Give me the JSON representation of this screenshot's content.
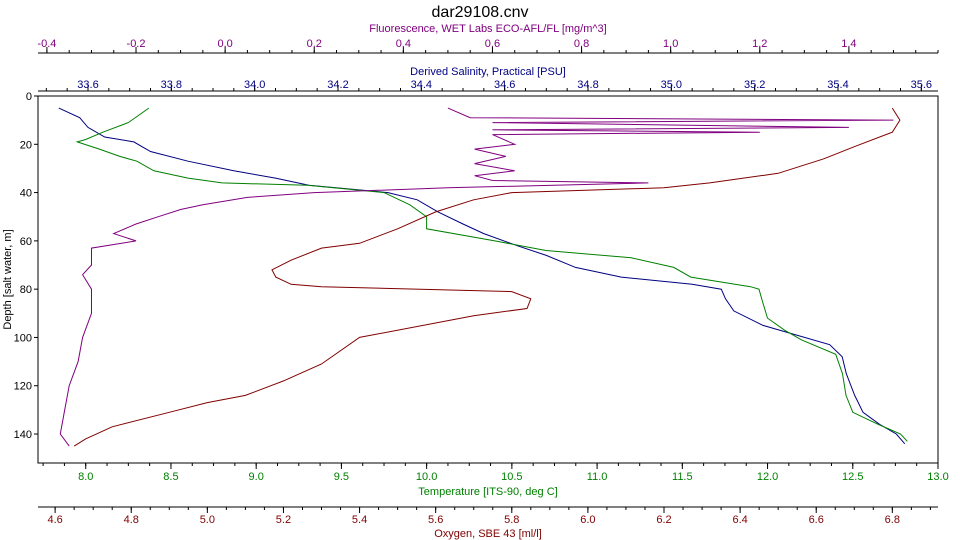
{
  "chart_data": {
    "type": "line",
    "title": "dar29108.cnv",
    "grid": false,
    "legend": "none",
    "y_axis": {
      "label": "Depth [salt water, m]",
      "range": [
        0,
        152
      ],
      "inverted": true,
      "ticks": [
        "0",
        "20",
        "40",
        "60",
        "80",
        "100",
        "120",
        "140"
      ],
      "color": "#000000"
    },
    "x_axes": [
      {
        "id": "fluorescence",
        "label": "Fluorescence, WET Labs ECO-AFL/FL [mg/m^3]",
        "range": [
          -0.42,
          1.6
        ],
        "ticks": [
          "-0.4",
          "-0.2",
          "0.0",
          "0.2",
          "0.4",
          "0.6",
          "0.8",
          "1.0",
          "1.2",
          "1.4"
        ],
        "color": "#800080"
      },
      {
        "id": "salinity",
        "label": "Derived Salinity, Practical [PSU]",
        "range": [
          33.48,
          35.64
        ],
        "ticks": [
          "33.6",
          "33.8",
          "34.0",
          "34.2",
          "34.4",
          "34.6",
          "34.8",
          "35.0",
          "35.2",
          "35.4",
          "35.6"
        ],
        "color": "#000080"
      },
      {
        "id": "temperature",
        "label": "Temperature [ITS-90, deg C]",
        "range": [
          7.72,
          13.0
        ],
        "ticks": [
          "8.0",
          "8.5",
          "9.0",
          "9.5",
          "10.0",
          "10.5",
          "11.0",
          "11.5",
          "12.0",
          "12.5",
          "13.0"
        ],
        "color": "#008000"
      },
      {
        "id": "oxygen",
        "label": "Oxygen, SBE 43 [ml/l]",
        "range": [
          4.555,
          6.92
        ],
        "ticks": [
          "4.6",
          "4.8",
          "5.0",
          "5.2",
          "5.4",
          "5.6",
          "5.8",
          "6.0",
          "6.2",
          "6.4",
          "6.6",
          "6.8"
        ],
        "color": "#800000"
      }
    ],
    "series": [
      {
        "axis": "salinity",
        "color": "#000080",
        "points": [
          [
            33.53,
            5
          ],
          [
            33.58,
            9
          ],
          [
            33.6,
            13
          ],
          [
            33.64,
            17
          ],
          [
            33.71,
            19
          ],
          [
            33.75,
            23
          ],
          [
            33.84,
            27
          ],
          [
            33.95,
            31
          ],
          [
            34.05,
            34
          ],
          [
            34.13,
            37
          ],
          [
            34.32,
            40
          ],
          [
            34.39,
            43
          ],
          [
            34.44,
            48
          ],
          [
            34.5,
            53
          ],
          [
            34.55,
            57
          ],
          [
            34.63,
            62
          ],
          [
            34.7,
            66
          ],
          [
            34.77,
            71
          ],
          [
            34.88,
            75
          ],
          [
            35.05,
            78
          ],
          [
            35.12,
            80
          ],
          [
            35.13,
            84
          ],
          [
            35.15,
            89
          ],
          [
            35.22,
            95
          ],
          [
            35.3,
            99
          ],
          [
            35.38,
            103
          ],
          [
            35.41,
            108
          ],
          [
            35.42,
            115
          ],
          [
            35.44,
            124
          ],
          [
            35.46,
            131
          ],
          [
            35.5,
            136
          ],
          [
            35.54,
            140
          ],
          [
            35.56,
            144
          ]
        ]
      },
      {
        "axis": "temperature",
        "color": "#008000",
        "points": [
          [
            8.37,
            5
          ],
          [
            8.25,
            11
          ],
          [
            8.1,
            15
          ],
          [
            8.0,
            18
          ],
          [
            7.95,
            19
          ],
          [
            8.08,
            22
          ],
          [
            8.2,
            25
          ],
          [
            8.3,
            27
          ],
          [
            8.4,
            31
          ],
          [
            8.6,
            34
          ],
          [
            8.8,
            36
          ],
          [
            9.3,
            37
          ],
          [
            9.75,
            40
          ],
          [
            9.9,
            45
          ],
          [
            10.0,
            50
          ],
          [
            10.0,
            55
          ],
          [
            10.4,
            60
          ],
          [
            10.7,
            64
          ],
          [
            11.2,
            67
          ],
          [
            11.45,
            71
          ],
          [
            11.55,
            75
          ],
          [
            11.9,
            79
          ],
          [
            11.95,
            80
          ],
          [
            11.97,
            85
          ],
          [
            12.0,
            92
          ],
          [
            12.1,
            97
          ],
          [
            12.2,
            101
          ],
          [
            12.4,
            107
          ],
          [
            12.44,
            115
          ],
          [
            12.46,
            124
          ],
          [
            12.5,
            131
          ],
          [
            12.65,
            136
          ],
          [
            12.78,
            140
          ],
          [
            12.82,
            143
          ]
        ]
      },
      {
        "axis": "oxygen",
        "color": "#800000",
        "points": [
          [
            6.8,
            5
          ],
          [
            6.82,
            10
          ],
          [
            6.8,
            15
          ],
          [
            6.7,
            21
          ],
          [
            6.62,
            26
          ],
          [
            6.5,
            32
          ],
          [
            6.32,
            36
          ],
          [
            6.2,
            38
          ],
          [
            5.8,
            40
          ],
          [
            5.7,
            43
          ],
          [
            5.6,
            48
          ],
          [
            5.5,
            55
          ],
          [
            5.4,
            61
          ],
          [
            5.3,
            63
          ],
          [
            5.22,
            68
          ],
          [
            5.17,
            72
          ],
          [
            5.18,
            75
          ],
          [
            5.22,
            78
          ],
          [
            5.3,
            79
          ],
          [
            5.8,
            81
          ],
          [
            5.85,
            84
          ],
          [
            5.84,
            88
          ],
          [
            5.7,
            91
          ],
          [
            5.4,
            100
          ],
          [
            5.3,
            111
          ],
          [
            5.2,
            118
          ],
          [
            5.1,
            124
          ],
          [
            5.0,
            127
          ],
          [
            4.9,
            131
          ],
          [
            4.75,
            137
          ],
          [
            4.68,
            142
          ],
          [
            4.65,
            145
          ]
        ]
      },
      {
        "axis": "fluorescence",
        "color": "#800080",
        "points": [
          [
            0.5,
            5
          ],
          [
            0.55,
            9
          ],
          [
            1.5,
            10
          ],
          [
            0.6,
            11
          ],
          [
            1.4,
            13
          ],
          [
            0.6,
            14
          ],
          [
            1.2,
            15
          ],
          [
            0.6,
            16
          ],
          [
            0.65,
            20
          ],
          [
            0.56,
            22
          ],
          [
            0.63,
            25
          ],
          [
            0.56,
            28
          ],
          [
            0.65,
            31
          ],
          [
            0.56,
            33
          ],
          [
            0.6,
            35
          ],
          [
            0.95,
            36
          ],
          [
            0.5,
            38
          ],
          [
            0.2,
            40
          ],
          [
            0.05,
            42
          ],
          [
            -0.05,
            45
          ],
          [
            -0.1,
            47
          ],
          [
            -0.15,
            50
          ],
          [
            -0.2,
            53
          ],
          [
            -0.25,
            57
          ],
          [
            -0.2,
            60
          ],
          [
            -0.3,
            63
          ],
          [
            -0.3,
            70
          ],
          [
            -0.32,
            74
          ],
          [
            -0.3,
            80
          ],
          [
            -0.3,
            90
          ],
          [
            -0.32,
            100
          ],
          [
            -0.33,
            110
          ],
          [
            -0.35,
            120
          ],
          [
            -0.36,
            130
          ],
          [
            -0.37,
            140
          ],
          [
            -0.35,
            145
          ]
        ]
      }
    ]
  }
}
